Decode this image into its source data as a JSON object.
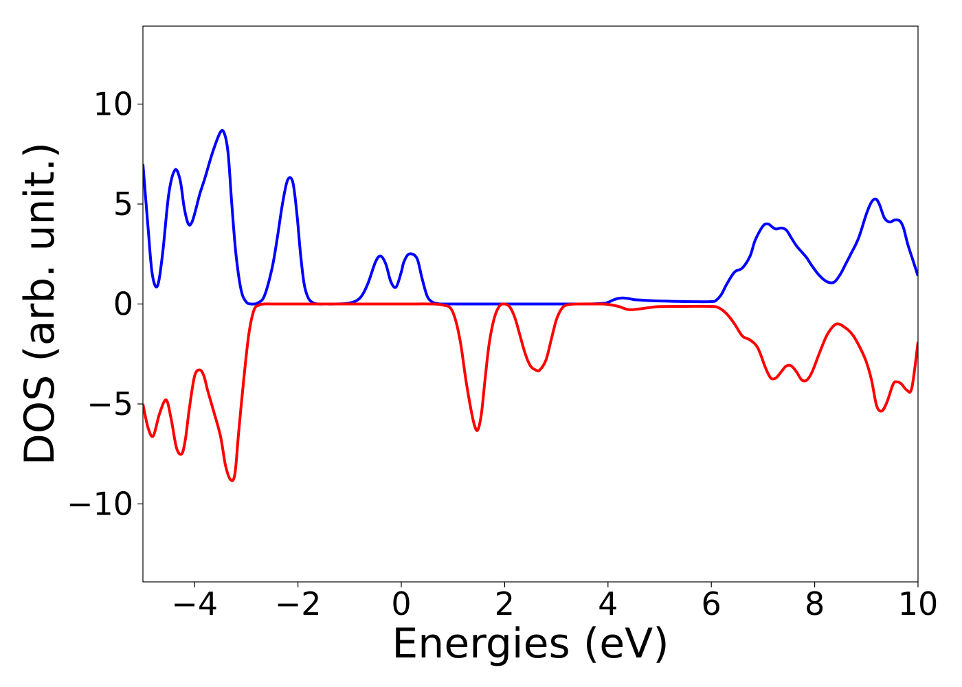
{
  "chart_data": {
    "type": "line",
    "title": "",
    "xlabel": "Energies (eV)",
    "ylabel": "DOS (arb. unit.)",
    "xlim": [
      -5,
      10
    ],
    "ylim": [
      -13.9,
      13.9
    ],
    "grid": false,
    "legend": "none",
    "x_ticks": [
      -4,
      -2,
      0,
      2,
      4,
      6,
      8,
      10
    ],
    "x_tick_labels": [
      "−4",
      "−2",
      "0",
      "2",
      "4",
      "6",
      "8",
      "10"
    ],
    "y_ticks": [
      -10,
      -5,
      0,
      5,
      10
    ],
    "y_tick_labels": [
      "−10",
      "−5",
      "0",
      "5",
      "10"
    ],
    "series": [
      {
        "color": "#0000ff",
        "x": [
          -5.0,
          -4.9,
          -4.82,
          -4.72,
          -4.62,
          -4.5,
          -4.38,
          -4.28,
          -4.2,
          -4.12,
          -4.05,
          -3.97,
          -3.9,
          -3.8,
          -3.65,
          -3.5,
          -3.42,
          -3.35,
          -3.28,
          -3.2,
          -3.1,
          -3.0,
          -2.9,
          -2.78,
          -2.65,
          -2.5,
          -2.4,
          -2.3,
          -2.2,
          -2.1,
          -2.02,
          -1.95,
          -1.88,
          -1.8,
          -1.7,
          -1.6,
          -1.5,
          -1.3,
          -1.0,
          -0.8,
          -0.65,
          -0.5,
          -0.4,
          -0.3,
          -0.2,
          -0.1,
          0.0,
          0.05,
          0.15,
          0.3,
          0.4,
          0.5,
          0.6,
          0.7,
          0.8,
          1.0,
          2.0,
          3.0,
          3.6,
          3.9,
          4.0,
          4.1,
          4.2,
          4.3,
          4.4,
          4.5,
          4.6,
          4.8,
          5.0,
          5.5,
          6.0,
          6.1,
          6.2,
          6.3,
          6.45,
          6.6,
          6.75,
          6.85,
          7.0,
          7.1,
          7.18,
          7.25,
          7.35,
          7.45,
          7.55,
          7.65,
          7.75,
          7.85,
          7.95,
          8.1,
          8.25,
          8.38,
          8.5,
          8.6,
          8.7,
          8.85,
          9.0,
          9.1,
          9.18,
          9.25,
          9.35,
          9.45,
          9.55,
          9.65,
          9.72,
          9.8,
          9.9,
          10.0
        ],
        "y": [
          7.0,
          3.8,
          1.5,
          0.9,
          2.5,
          5.5,
          6.7,
          6.2,
          4.8,
          4.0,
          4.1,
          4.8,
          5.5,
          6.3,
          7.6,
          8.6,
          8.5,
          7.5,
          5.0,
          2.5,
          0.7,
          0.1,
          0.0,
          0.05,
          0.4,
          1.8,
          3.3,
          5.0,
          6.2,
          6.1,
          4.5,
          2.5,
          1.0,
          0.3,
          0.05,
          0.0,
          0.0,
          0.0,
          0.05,
          0.3,
          1.0,
          2.1,
          2.4,
          2.0,
          1.1,
          0.85,
          1.6,
          2.1,
          2.5,
          2.3,
          1.3,
          0.4,
          0.1,
          0.02,
          0.0,
          0.0,
          0.0,
          0.0,
          0.0,
          0.03,
          0.08,
          0.2,
          0.28,
          0.3,
          0.27,
          0.22,
          0.2,
          0.17,
          0.15,
          0.12,
          0.12,
          0.2,
          0.5,
          1.0,
          1.6,
          1.8,
          2.4,
          3.2,
          3.9,
          4.0,
          3.85,
          3.75,
          3.8,
          3.7,
          3.3,
          2.9,
          2.6,
          2.3,
          1.9,
          1.4,
          1.1,
          1.1,
          1.5,
          2.0,
          2.5,
          3.3,
          4.5,
          5.1,
          5.25,
          5.0,
          4.3,
          4.1,
          4.2,
          4.15,
          3.8,
          3.0,
          2.2,
          1.4
        ]
      },
      {
        "color": "#ff0000",
        "x": [
          -5.0,
          -4.9,
          -4.8,
          -4.68,
          -4.55,
          -4.45,
          -4.35,
          -4.25,
          -4.18,
          -4.1,
          -4.0,
          -3.9,
          -3.82,
          -3.75,
          -3.65,
          -3.5,
          -3.4,
          -3.3,
          -3.22,
          -3.15,
          -3.05,
          -2.95,
          -2.85,
          -2.75,
          -2.65,
          -2.5,
          -2.0,
          -1.0,
          0.0,
          0.6,
          0.8,
          0.95,
          1.05,
          1.15,
          1.25,
          1.35,
          1.42,
          1.48,
          1.55,
          1.62,
          1.7,
          1.8,
          1.9,
          2.0,
          2.1,
          2.2,
          2.3,
          2.4,
          2.5,
          2.6,
          2.68,
          2.8,
          2.9,
          3.0,
          3.1,
          3.2,
          3.4,
          3.8,
          4.0,
          4.2,
          4.4,
          4.6,
          4.8,
          5.0,
          5.5,
          6.0,
          6.15,
          6.3,
          6.45,
          6.6,
          6.75,
          6.9,
          7.05,
          7.15,
          7.25,
          7.35,
          7.45,
          7.55,
          7.65,
          7.75,
          7.85,
          7.95,
          8.1,
          8.25,
          8.42,
          8.6,
          8.75,
          8.9,
          9.0,
          9.1,
          9.2,
          9.3,
          9.4,
          9.52,
          9.6,
          9.68,
          9.78,
          9.88,
          10.0
        ],
        "y": [
          -5.0,
          -6.2,
          -6.6,
          -5.5,
          -4.8,
          -5.8,
          -7.2,
          -7.5,
          -6.8,
          -5.2,
          -3.6,
          -3.3,
          -3.6,
          -4.3,
          -5.2,
          -6.6,
          -8.1,
          -8.8,
          -8.5,
          -6.5,
          -3.8,
          -1.5,
          -0.3,
          -0.05,
          0.0,
          0.0,
          0.0,
          0.0,
          0.0,
          0.0,
          -0.05,
          -0.2,
          -0.8,
          -2.0,
          -3.8,
          -5.3,
          -6.1,
          -6.3,
          -5.5,
          -3.8,
          -2.0,
          -0.7,
          -0.1,
          0.0,
          -0.15,
          -0.7,
          -1.6,
          -2.5,
          -3.1,
          -3.3,
          -3.3,
          -2.8,
          -1.8,
          -0.8,
          -0.25,
          -0.05,
          0.0,
          0.0,
          -0.02,
          -0.12,
          -0.28,
          -0.25,
          -0.18,
          -0.13,
          -0.12,
          -0.12,
          -0.2,
          -0.5,
          -1.0,
          -1.6,
          -1.8,
          -2.2,
          -3.2,
          -3.7,
          -3.7,
          -3.4,
          -3.1,
          -3.1,
          -3.4,
          -3.8,
          -3.8,
          -3.4,
          -2.4,
          -1.5,
          -1.0,
          -1.2,
          -1.6,
          -2.3,
          -2.9,
          -3.8,
          -5.1,
          -5.35,
          -4.9,
          -4.0,
          -3.9,
          -4.0,
          -4.3,
          -4.2,
          -1.9
        ]
      }
    ]
  }
}
